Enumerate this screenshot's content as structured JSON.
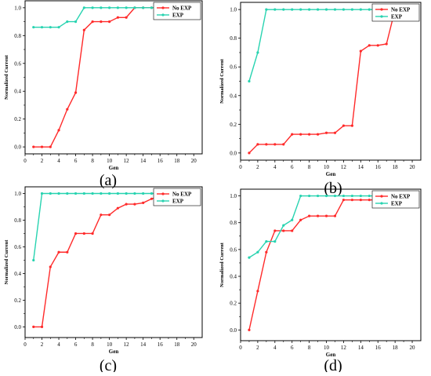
{
  "figure": {
    "panel_labels": [
      "(a)",
      "(b)",
      "(c)",
      "(d)"
    ]
  },
  "colors": {
    "no_exp": "#ff2a2a",
    "exp": "#27d3b0",
    "axis": "#000000"
  },
  "chart_data": [
    {
      "type": "line",
      "panel": "(a)",
      "xlabel": "Gen",
      "ylabel": "Normalized Current",
      "xlim": [
        0,
        21
      ],
      "ylim": [
        -0.05,
        1.05
      ],
      "xticks": [
        0,
        2,
        4,
        6,
        8,
        10,
        12,
        14,
        16,
        18,
        20
      ],
      "yticks": [
        0.0,
        0.2,
        0.4,
        0.6,
        0.8,
        1.0
      ],
      "legend": "top-right",
      "grid": false,
      "series": [
        {
          "name": "No EXP",
          "x": [
            1,
            2,
            3,
            4,
            5,
            6,
            7,
            8,
            9,
            10,
            11,
            12,
            13,
            14,
            15,
            16,
            17,
            18,
            19,
            20
          ],
          "values": [
            0.0,
            0.0,
            0.0,
            0.12,
            0.27,
            0.39,
            0.84,
            0.9,
            0.9,
            0.9,
            0.93,
            0.93,
            1.0,
            1.0,
            1.0,
            1.0,
            1.0,
            1.0,
            1.0,
            1.0
          ]
        },
        {
          "name": "EXP",
          "x": [
            1,
            2,
            3,
            4,
            5,
            6,
            7,
            8,
            9,
            10,
            11,
            12,
            13,
            14,
            15,
            16,
            17,
            18,
            19,
            20
          ],
          "values": [
            0.86,
            0.86,
            0.86,
            0.86,
            0.9,
            0.9,
            1.0,
            1.0,
            1.0,
            1.0,
            1.0,
            1.0,
            1.0,
            1.0,
            1.0,
            1.0,
            1.0,
            1.0,
            1.0,
            1.0
          ]
        }
      ]
    },
    {
      "type": "line",
      "panel": "(b)",
      "xlabel": "Gen",
      "ylabel": "Normalized Current",
      "xlim": [
        0,
        21
      ],
      "ylim": [
        -0.05,
        1.05
      ],
      "xticks": [
        0,
        2,
        4,
        6,
        8,
        10,
        12,
        14,
        16,
        18,
        20
      ],
      "yticks": [
        0.0,
        0.2,
        0.4,
        0.6,
        0.8,
        1.0
      ],
      "legend": "top-right",
      "grid": false,
      "series": [
        {
          "name": "No EXP",
          "x": [
            1,
            2,
            3,
            4,
            5,
            6,
            7,
            8,
            9,
            10,
            11,
            12,
            13,
            14,
            15,
            16,
            17,
            18
          ],
          "values": [
            0.0,
            0.06,
            0.06,
            0.06,
            0.06,
            0.13,
            0.13,
            0.13,
            0.13,
            0.14,
            0.14,
            0.19,
            0.19,
            0.71,
            0.75,
            0.75,
            0.76,
            1.0
          ]
        },
        {
          "name": "EXP",
          "x": [
            1,
            2,
            3,
            4,
            5,
            6,
            7,
            8,
            9,
            10,
            11,
            12,
            13,
            14,
            15,
            16,
            17,
            18,
            19,
            20
          ],
          "values": [
            0.5,
            0.7,
            1.0,
            1.0,
            1.0,
            1.0,
            1.0,
            1.0,
            1.0,
            1.0,
            1.0,
            1.0,
            1.0,
            1.0,
            1.0,
            1.0,
            1.0,
            1.0,
            1.0,
            1.0
          ]
        }
      ]
    },
    {
      "type": "line",
      "panel": "(c)",
      "xlabel": "Gen",
      "ylabel": "Normalized Current",
      "xlim": [
        0,
        21
      ],
      "ylim": [
        -0.08,
        1.05
      ],
      "xticks": [
        0,
        2,
        4,
        6,
        8,
        10,
        12,
        14,
        16,
        18,
        20
      ],
      "yticks": [
        0.0,
        0.2,
        0.4,
        0.6,
        0.8,
        1.0
      ],
      "legend": "top-right",
      "grid": false,
      "series": [
        {
          "name": "No EXP",
          "x": [
            1,
            2,
            3,
            4,
            5,
            6,
            7,
            8,
            9,
            10,
            11,
            12,
            13,
            14,
            15,
            16,
            17,
            18,
            19,
            20
          ],
          "values": [
            0.0,
            0.0,
            0.45,
            0.56,
            0.56,
            0.7,
            0.7,
            0.7,
            0.84,
            0.84,
            0.89,
            0.92,
            0.92,
            0.93,
            0.96,
            0.98,
            1.0,
            1.0,
            1.0,
            1.0
          ]
        },
        {
          "name": "EXP",
          "x": [
            1,
            2,
            3,
            4,
            5,
            6,
            7,
            8,
            9,
            10,
            11,
            12,
            13,
            14,
            15,
            16,
            17,
            18,
            19,
            20
          ],
          "values": [
            0.5,
            1.0,
            1.0,
            1.0,
            1.0,
            1.0,
            1.0,
            1.0,
            1.0,
            1.0,
            1.0,
            1.0,
            1.0,
            1.0,
            1.0,
            1.0,
            1.0,
            1.0,
            1.0,
            1.0
          ]
        }
      ]
    },
    {
      "type": "line",
      "panel": "(d)",
      "xlabel": "Gen",
      "ylabel": "Normalized Current",
      "xlim": [
        0,
        21
      ],
      "ylim": [
        -0.08,
        1.05
      ],
      "xticks": [
        0,
        2,
        4,
        6,
        8,
        10,
        12,
        14,
        16,
        18,
        20
      ],
      "yticks": [
        0.0,
        0.2,
        0.4,
        0.6,
        0.8,
        1.0
      ],
      "legend": "top-right",
      "grid": false,
      "series": [
        {
          "name": "No EXP",
          "x": [
            1,
            2,
            3,
            4,
            5,
            6,
            7,
            8,
            9,
            10,
            11,
            12,
            13,
            14,
            15,
            16,
            17,
            18,
            19,
            20
          ],
          "values": [
            0.0,
            0.29,
            0.58,
            0.74,
            0.74,
            0.74,
            0.82,
            0.85,
            0.85,
            0.85,
            0.85,
            0.97,
            0.97,
            0.97,
            0.97,
            0.97,
            0.98,
            1.0,
            1.0,
            1.0
          ]
        },
        {
          "name": "EXP",
          "x": [
            1,
            2,
            3,
            4,
            5,
            6,
            7,
            8,
            9,
            10,
            11,
            12,
            13,
            14,
            15,
            16,
            17,
            18,
            19,
            20
          ],
          "values": [
            0.54,
            0.58,
            0.66,
            0.66,
            0.78,
            0.82,
            1.0,
            1.0,
            1.0,
            1.0,
            1.0,
            1.0,
            1.0,
            1.0,
            1.0,
            1.0,
            1.0,
            1.0,
            1.0,
            1.0
          ]
        }
      ]
    }
  ]
}
